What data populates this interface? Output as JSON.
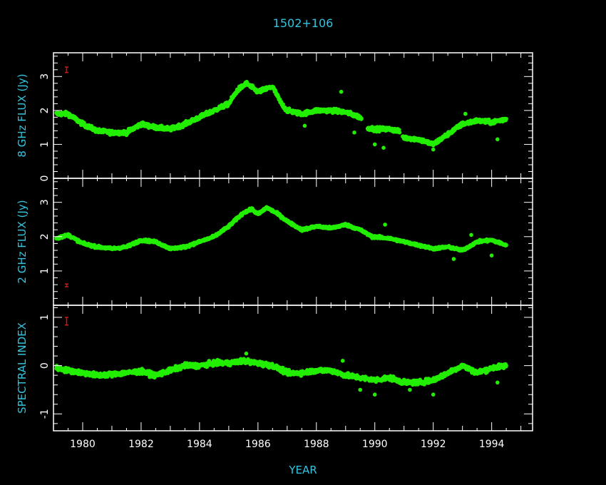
{
  "title": "1502+106",
  "colors": {
    "background": "#000000",
    "axes": "#ffffff",
    "data": "#22ee00",
    "error_bar": "#dd1111",
    "labels": "#33c4e0"
  },
  "chart_data": [
    {
      "type": "scatter",
      "ylabel": "8 GHz FLUX (Jy)",
      "xlim": [
        1979.0,
        1995.4
      ],
      "ylim": [
        0,
        3.7
      ],
      "yticks": [
        0,
        1,
        2,
        3
      ],
      "xticks": [
        1980,
        1982,
        1984,
        1986,
        1988,
        1990,
        1992,
        1994
      ],
      "error_bar": {
        "x": 1979.45,
        "y": 3.2,
        "half": 0.08
      },
      "x_range": [
        1979.1,
        1994.5
      ],
      "trend": [
        [
          1979.1,
          1.9
        ],
        [
          1979.5,
          1.9
        ],
        [
          1980.0,
          1.6
        ],
        [
          1980.5,
          1.4
        ],
        [
          1981.0,
          1.35
        ],
        [
          1981.5,
          1.35
        ],
        [
          1982.0,
          1.6
        ],
        [
          1982.5,
          1.5
        ],
        [
          1983.0,
          1.45
        ],
        [
          1983.5,
          1.6
        ],
        [
          1984.0,
          1.8
        ],
        [
          1984.5,
          2.0
        ],
        [
          1985.0,
          2.2
        ],
        [
          1985.3,
          2.6
        ],
        [
          1985.6,
          2.8
        ],
        [
          1986.0,
          2.55
        ],
        [
          1986.5,
          2.7
        ],
        [
          1986.8,
          2.2
        ],
        [
          1987.0,
          2.0
        ],
        [
          1987.5,
          1.9
        ],
        [
          1988.0,
          2.0
        ],
        [
          1988.5,
          2.0
        ],
        [
          1989.0,
          1.95
        ],
        [
          1989.5,
          1.8
        ],
        [
          1989.7,
          1.5
        ],
        [
          1990.0,
          1.45
        ],
        [
          1990.5,
          1.45
        ],
        [
          1990.8,
          1.4
        ],
        [
          1991.0,
          1.2
        ],
        [
          1991.5,
          1.15
        ],
        [
          1992.0,
          1.0
        ],
        [
          1992.5,
          1.3
        ],
        [
          1993.0,
          1.6
        ],
        [
          1993.5,
          1.7
        ],
        [
          1994.0,
          1.65
        ],
        [
          1994.5,
          1.75
        ]
      ],
      "scatter_width": 0.1,
      "outliers": [
        [
          1988.85,
          2.55
        ],
        [
          1989.3,
          1.35
        ],
        [
          1990.0,
          1.0
        ],
        [
          1990.3,
          0.9
        ],
        [
          1992.0,
          0.85
        ],
        [
          1993.1,
          1.9
        ],
        [
          1994.2,
          1.15
        ],
        [
          1987.6,
          1.55
        ]
      ],
      "gaps": [
        [
          1989.55,
          1989.75
        ],
        [
          1990.85,
          1990.95
        ]
      ]
    },
    {
      "type": "scatter",
      "ylabel": "2 GHz FLUX (Jy)",
      "xlim": [
        1979.0,
        1995.4
      ],
      "ylim": [
        0,
        3.7
      ],
      "yticks": [
        1,
        2,
        3
      ],
      "xticks": [
        1980,
        1982,
        1984,
        1986,
        1988,
        1990,
        1992,
        1994
      ],
      "error_bar": {
        "x": 1979.45,
        "y": 0.58,
        "half": 0.04
      },
      "x_range": [
        1979.1,
        1994.5
      ],
      "trend": [
        [
          1979.1,
          1.95
        ],
        [
          1979.5,
          2.05
        ],
        [
          1980.0,
          1.8
        ],
        [
          1980.5,
          1.7
        ],
        [
          1981.0,
          1.65
        ],
        [
          1981.5,
          1.7
        ],
        [
          1982.0,
          1.9
        ],
        [
          1982.5,
          1.85
        ],
        [
          1983.0,
          1.65
        ],
        [
          1983.5,
          1.7
        ],
        [
          1984.0,
          1.85
        ],
        [
          1984.5,
          2.0
        ],
        [
          1985.0,
          2.3
        ],
        [
          1985.5,
          2.7
        ],
        [
          1985.8,
          2.8
        ],
        [
          1986.0,
          2.65
        ],
        [
          1986.3,
          2.85
        ],
        [
          1986.7,
          2.65
        ],
        [
          1987.0,
          2.45
        ],
        [
          1987.5,
          2.2
        ],
        [
          1988.0,
          2.3
        ],
        [
          1988.5,
          2.25
        ],
        [
          1989.0,
          2.35
        ],
        [
          1989.5,
          2.2
        ],
        [
          1989.9,
          2.0
        ],
        [
          1990.5,
          1.95
        ],
        [
          1991.0,
          1.85
        ],
        [
          1991.5,
          1.75
        ],
        [
          1992.0,
          1.65
        ],
        [
          1992.5,
          1.7
        ],
        [
          1993.0,
          1.6
        ],
        [
          1993.5,
          1.85
        ],
        [
          1994.0,
          1.9
        ],
        [
          1994.5,
          1.75
        ]
      ],
      "scatter_width": 0.06,
      "outliers": [
        [
          1990.35,
          2.35
        ],
        [
          1992.7,
          1.35
        ],
        [
          1994.0,
          1.45
        ],
        [
          1993.3,
          2.05
        ]
      ],
      "gaps": []
    },
    {
      "type": "scatter",
      "ylabel": "SPECTRAL INDEX",
      "xlim": [
        1979.0,
        1995.4
      ],
      "ylim": [
        -1.35,
        1.25
      ],
      "yticks": [
        -1,
        0,
        1
      ],
      "xticks": [
        1980,
        1982,
        1984,
        1986,
        1988,
        1990,
        1992,
        1994
      ],
      "error_bar": {
        "x": 1979.45,
        "y": 0.92,
        "half": 0.08
      },
      "x_range": [
        1979.1,
        1994.5
      ],
      "trend": [
        [
          1979.1,
          -0.05
        ],
        [
          1979.5,
          -0.1
        ],
        [
          1980.0,
          -0.15
        ],
        [
          1980.5,
          -0.2
        ],
        [
          1981.0,
          -0.18
        ],
        [
          1981.5,
          -0.15
        ],
        [
          1982.0,
          -0.12
        ],
        [
          1982.5,
          -0.2
        ],
        [
          1983.0,
          -0.1
        ],
        [
          1983.5,
          0.0
        ],
        [
          1984.0,
          0.0
        ],
        [
          1984.5,
          0.05
        ],
        [
          1985.0,
          0.05
        ],
        [
          1985.5,
          0.1
        ],
        [
          1986.0,
          0.05
        ],
        [
          1986.5,
          0.0
        ],
        [
          1987.0,
          -0.15
        ],
        [
          1987.5,
          -0.15
        ],
        [
          1988.0,
          -0.1
        ],
        [
          1988.5,
          -0.1
        ],
        [
          1989.0,
          -0.2
        ],
        [
          1989.5,
          -0.25
        ],
        [
          1990.0,
          -0.3
        ],
        [
          1990.5,
          -0.25
        ],
        [
          1991.0,
          -0.35
        ],
        [
          1991.5,
          -0.35
        ],
        [
          1992.0,
          -0.3
        ],
        [
          1992.5,
          -0.15
        ],
        [
          1993.0,
          0.0
        ],
        [
          1993.5,
          -0.15
        ],
        [
          1994.0,
          -0.05
        ],
        [
          1994.5,
          0.0
        ]
      ],
      "scatter_width": 0.08,
      "outliers": [
        [
          1988.9,
          0.1
        ],
        [
          1989.5,
          -0.5
        ],
        [
          1990.0,
          -0.6
        ],
        [
          1991.2,
          -0.5
        ],
        [
          1992.0,
          -0.6
        ],
        [
          1994.2,
          -0.35
        ],
        [
          1985.6,
          0.25
        ]
      ],
      "gaps": []
    }
  ],
  "xlabel": "YEAR"
}
